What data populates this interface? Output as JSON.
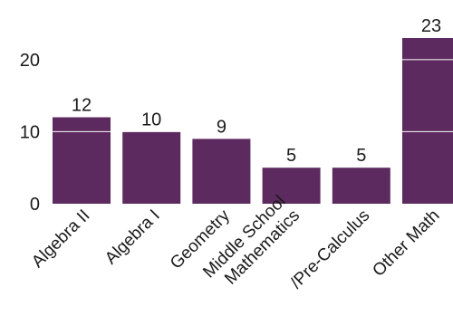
{
  "chart_data": {
    "type": "bar",
    "categories": [
      "Algebra II",
      "Algebra I",
      "Geometry",
      "Middle School Mathematics",
      "/Pre-Calculus",
      "Other Math"
    ],
    "category_label_lines": [
      [
        "Algebra II"
      ],
      [
        "Algebra I"
      ],
      [
        "Geometry"
      ],
      [
        "Middle School",
        "Mathematics"
      ],
      [
        "/Pre-Calculus"
      ],
      [
        "Other Math"
      ]
    ],
    "values": [
      12,
      10,
      9,
      5,
      5,
      23
    ],
    "ylim": [
      0,
      23
    ],
    "yticks": [
      0,
      10,
      20
    ],
    "grid": "horizontal, white lines drawn over bars",
    "legend": "none",
    "title": "",
    "xlabel": "",
    "ylabel": "",
    "bar_color": "#5c2a5e",
    "grid_color": "#ffffff",
    "text_color": "#1a1a1a"
  }
}
